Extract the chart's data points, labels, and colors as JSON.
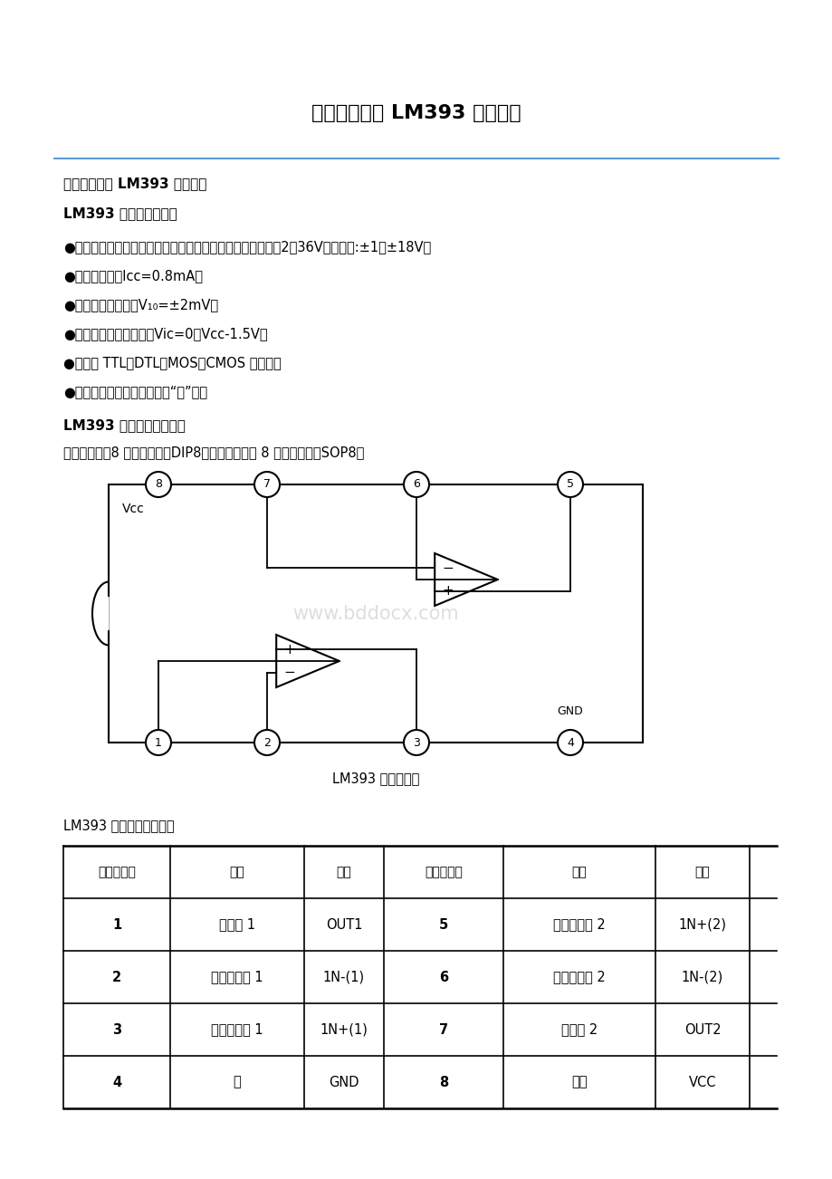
{
  "title": "双电压比较器 LM393 中文资料",
  "title_fontsize": 16,
  "bg_color": "#ffffff",
  "line_color": "#5b9bd5",
  "section_title1": "双电压比较器 LM393 中文资料",
  "section_title2": "LM393 主要特点如下：",
  "bullets": [
    "●工作电源电压范围宽，单电源、双电源均可工作，单电源：2～36V，双电源:±1～±18V；",
    "●消耗电流小，Icc=0.8mA；",
    "●输入失调电压小，V₁₀=±2mV；",
    "●共模输入电压范围宽，Vic=0～Vcc-1.5V；",
    "●输出与 TTL，DTL，MOS，CMOS 等兼容；",
    "●输出可以用开路集电极连接“或”门；"
  ],
  "section_title3": "LM393 引脚图及内部框图",
  "desc_text": "采用双列直排8 脚塑料封装（DIP8）和微形的双列 8 脚塑料封装（SOP8）",
  "diagram_caption": "LM393 内部结构图",
  "table_header_label": "LM393 引脚功能排列表：",
  "table_headers": [
    "引出端序号",
    "功能",
    "符号",
    "引出端序号",
    "功能",
    "符号"
  ],
  "table_rows": [
    [
      "1",
      "输出端 1",
      "OUT1",
      "5",
      "正向输入端 2",
      "1N+(2)"
    ],
    [
      "2",
      "反向输入端 1",
      "1N-(1)",
      "6",
      "反向输入端 2",
      "1N-(2)"
    ],
    [
      "3",
      "正向输入端 1",
      "1N+(1)",
      "7",
      "输出端 2",
      "OUT2"
    ],
    [
      "4",
      "地",
      "GND",
      "8",
      "电源",
      "VCC"
    ]
  ],
  "watermark": "www.bddocx.com",
  "text_color": "#000000",
  "bold_color": "#000000"
}
